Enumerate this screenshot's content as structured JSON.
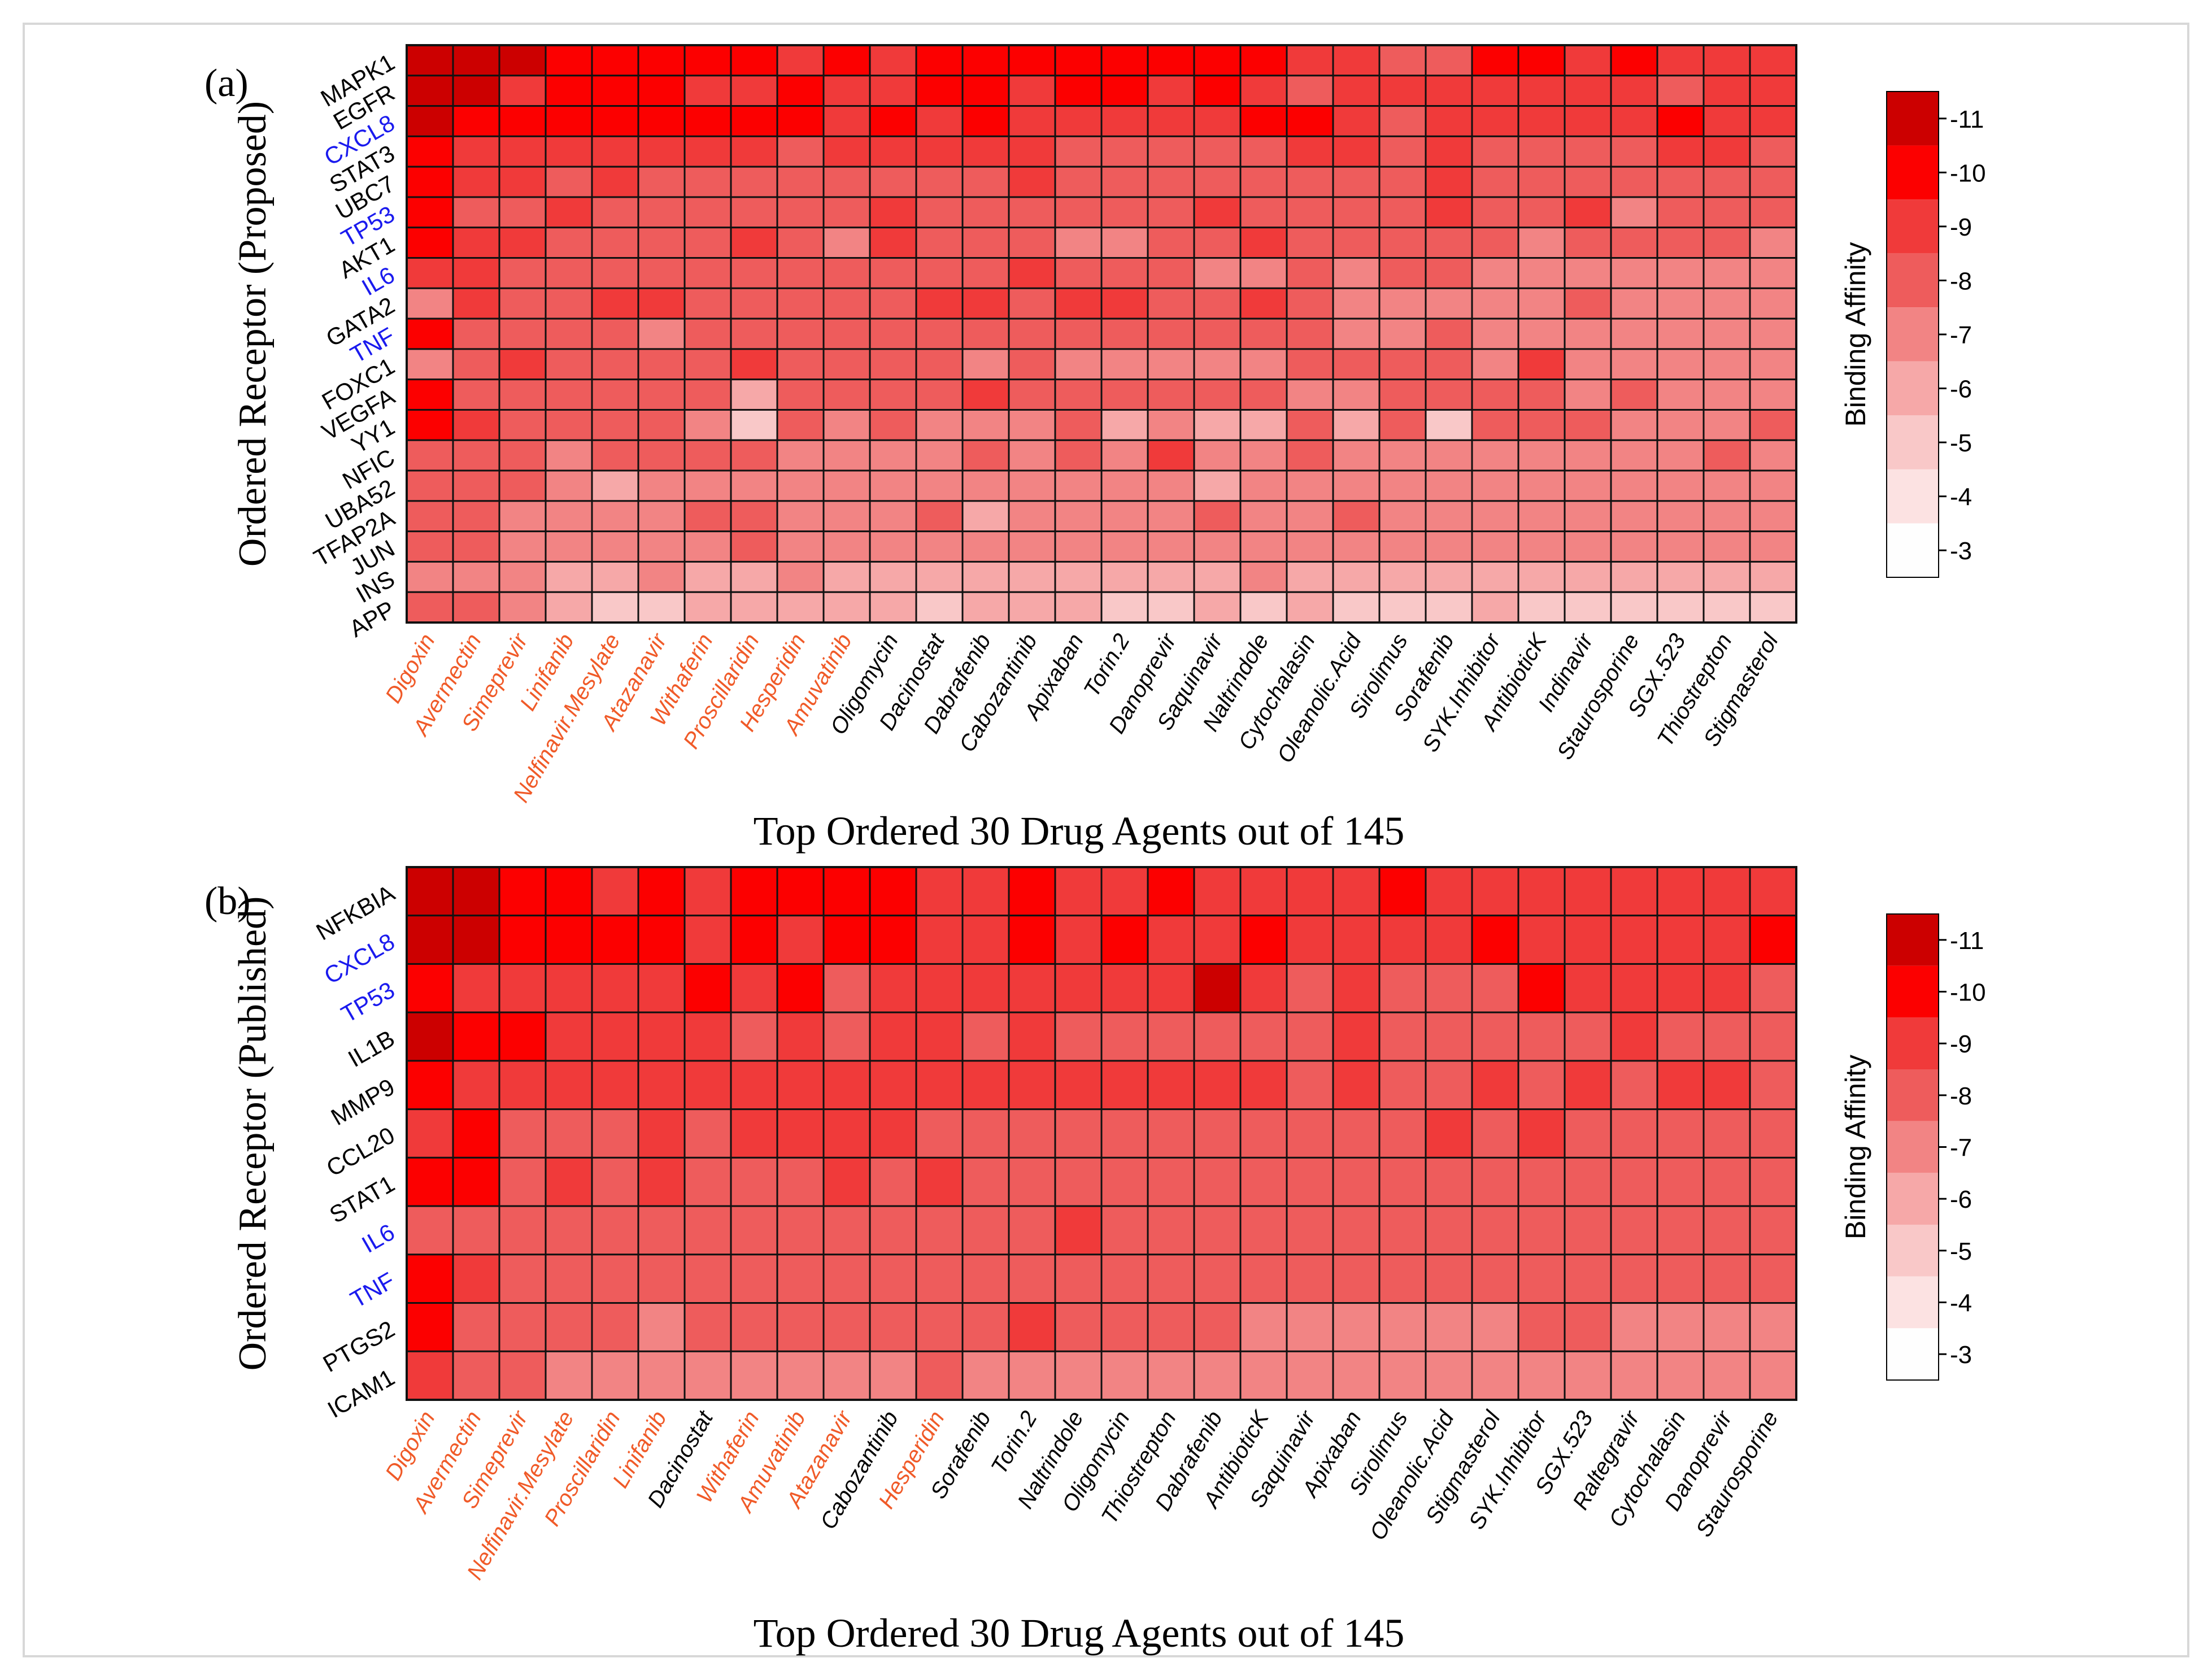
{
  "colors": {
    "text": "#000000",
    "highlight_blue": "#1a1aee",
    "highlight_orange": "#f05a28",
    "grid": "#111111",
    "scale_low": "#fefefe",
    "scale_high": "#cc0000"
  },
  "chart_data": [
    {
      "type": "heatmap",
      "panel_label": "(a)",
      "ylabel": "Ordered Receptor (Proposed)",
      "xlabel": "Top Ordered 30 Drug Agents out of 145",
      "rows": [
        "MAPK1",
        "EGFR",
        "CXCL8",
        "STAT3",
        "UBC7",
        "TP53",
        "AKT1",
        "IL6",
        "GATA2",
        "TNF",
        "FOXC1",
        "VEGFA",
        "YY1",
        "NFIC",
        "UBA52",
        "TFAP2A",
        "JUN",
        "INS",
        "APP"
      ],
      "blue_rows": [
        "CXCL8",
        "TP53",
        "IL6",
        "TNF"
      ],
      "columns": [
        "Digoxin",
        "Avermectin",
        "Simeprevir",
        "Linifanib",
        "Nelfinavir.Mesylate",
        "Atazanavir",
        "Withaferin",
        "Proscillaridin",
        "Hesperidin",
        "Amuvatinib",
        "Oligomycin",
        "Dacinostat",
        "Dabrafenib",
        "Cabozantinib",
        "Apixaban",
        "Torin.2",
        "Danoprevir",
        "Saquinavir",
        "Naltrindole",
        "Cytochalasin",
        "Oleanolic.Acid",
        "Sirolimus",
        "Sorafenib",
        "SYK.Inhibitor",
        "AntibioticK",
        "Indinavir",
        "Staurosporine",
        "SGX.523",
        "Thiostrepton",
        "Stigmasterol"
      ],
      "orange_columns": [
        "Digoxin",
        "Avermectin",
        "Simeprevir",
        "Linifanib",
        "Nelfinavir.Mesylate",
        "Atazanavir",
        "Withaferin",
        "Proscillaridin",
        "Hesperidin",
        "Amuvatinib"
      ],
      "values": [
        [
          -11.2,
          -11.3,
          -10.8,
          -10.2,
          -10.1,
          -10.1,
          -10.0,
          -10.2,
          -9.3,
          -10.0,
          -9.5,
          -10.0,
          -10.0,
          -9.8,
          -10.2,
          -10.2,
          -9.6,
          -10.2,
          -10.2,
          -9.5,
          -9.5,
          -8.4,
          -8.4,
          -10.4,
          -9.6,
          -9.3,
          -10.4,
          -9.2,
          -9.5,
          -9.2
        ],
        [
          -11.0,
          -11.2,
          -9.2,
          -9.6,
          -9.8,
          -9.7,
          -9.3,
          -9.4,
          -9.8,
          -9.3,
          -9.2,
          -9.6,
          -9.8,
          -9.2,
          -10.2,
          -10.2,
          -9.2,
          -10.4,
          -9.4,
          -7.6,
          -9.0,
          -8.6,
          -9.0,
          -9.3,
          -9.2,
          -9.0,
          -9.4,
          -7.6,
          -9.0,
          -9.1
        ],
        [
          -10.6,
          -10.0,
          -9.9,
          -9.9,
          -9.9,
          -9.8,
          -9.6,
          -9.8,
          -9.9,
          -9.5,
          -9.8,
          -9.4,
          -9.8,
          -9.3,
          -9.5,
          -9.4,
          -9.3,
          -9.3,
          -9.9,
          -10.0,
          -9.2,
          -8.5,
          -9.0,
          -9.0,
          -9.0,
          -8.8,
          -9.2,
          -10.2,
          -9.2,
          -9.3
        ],
        [
          -10.1,
          -8.8,
          -8.8,
          -9.0,
          -8.8,
          -8.9,
          -8.6,
          -8.6,
          -8.5,
          -8.6,
          -8.7,
          -8.6,
          -8.7,
          -8.8,
          -8.0,
          -8.2,
          -8.3,
          -8.4,
          -8.5,
          -8.6,
          -8.9,
          -8.3,
          -8.8,
          -8.4,
          -8.5,
          -8.4,
          -8.5,
          -8.6,
          -8.8,
          -8.5
        ],
        [
          -10.2,
          -8.8,
          -8.9,
          -8.3,
          -8.6,
          -8.4,
          -8.4,
          -8.5,
          -8.0,
          -8.1,
          -8.3,
          -8.3,
          -8.5,
          -8.8,
          -8.4,
          -8.1,
          -8.1,
          -8.4,
          -8.3,
          -8.2,
          -8.1,
          -8.2,
          -8.6,
          -8.2,
          -8.1,
          -8.0,
          -8.4,
          -8.4,
          -8.1,
          -8.2
        ],
        [
          -10.1,
          -7.8,
          -8.0,
          -8.8,
          -8.0,
          -8.2,
          -8.5,
          -8.4,
          -8.2,
          -8.3,
          -8.6,
          -8.2,
          -8.3,
          -8.1,
          -8.3,
          -8.1,
          -8.2,
          -8.8,
          -8.3,
          -8.1,
          -7.8,
          -7.9,
          -9.2,
          -8.0,
          -8.0,
          -9.5,
          -7.4,
          -7.9,
          -8.0,
          -8.0
        ],
        [
          -10.0,
          -8.9,
          -8.8,
          -8.2,
          -8.3,
          -8.2,
          -8.2,
          -8.9,
          -8.0,
          -6.8,
          -8.9,
          -8.0,
          -8.3,
          -8.1,
          -7.3,
          -7.4,
          -7.9,
          -8.2,
          -8.7,
          -8.0,
          -7.8,
          -8.2,
          -7.9,
          -7.6,
          -7.4,
          -7.6,
          -7.6,
          -7.6,
          -7.6,
          -7.3
        ],
        [
          -9.4,
          -8.7,
          -8.5,
          -8.1,
          -8.0,
          -8.2,
          -8.3,
          -8.3,
          -8.2,
          -8.1,
          -8.0,
          -8.2,
          -8.5,
          -9.1,
          -7.6,
          -7.7,
          -7.8,
          -7.5,
          -7.3,
          -7.8,
          -6.8,
          -7.8,
          -7.8,
          -7.3,
          -7.4,
          -7.2,
          -7.3,
          -7.3,
          -7.3,
          -7.5
        ],
        [
          -7.2,
          -8.9,
          -8.0,
          -7.9,
          -8.8,
          -8.8,
          -8.0,
          -8.1,
          -8.0,
          -8.0,
          -8.0,
          -8.8,
          -9.0,
          -8.0,
          -9.0,
          -8.8,
          -7.9,
          -8.2,
          -8.8,
          -8.0,
          -7.5,
          -7.5,
          -7.3,
          -7.4,
          -7.4,
          -7.6,
          -7.5,
          -7.4,
          -7.5,
          -7.4
        ],
        [
          -10.3,
          -8.3,
          -7.8,
          -7.8,
          -7.8,
          -6.9,
          -7.8,
          -7.8,
          -7.7,
          -7.8,
          -7.8,
          -7.8,
          -7.8,
          -7.9,
          -7.8,
          -7.7,
          -7.7,
          -7.6,
          -7.7,
          -7.7,
          -7.0,
          -7.4,
          -7.8,
          -7.3,
          -7.3,
          -7.0,
          -7.2,
          -7.2,
          -7.1,
          -7.2
        ],
        [
          -7.5,
          -8.1,
          -8.8,
          -8.0,
          -8.0,
          -8.0,
          -8.0,
          -8.9,
          -7.8,
          -7.9,
          -7.8,
          -8.0,
          -7.0,
          -8.0,
          -7.2,
          -7.4,
          -7.4,
          -7.3,
          -7.5,
          -7.7,
          -7.8,
          -7.6,
          -7.8,
          -7.5,
          -9.2,
          -7.4,
          -7.3,
          -7.5,
          -7.4,
          -7.2
        ],
        [
          -10.4,
          -7.8,
          -7.8,
          -7.8,
          -7.9,
          -7.8,
          -7.9,
          -6.2,
          -7.8,
          -7.8,
          -7.8,
          -7.6,
          -9.2,
          -7.9,
          -7.7,
          -7.6,
          -7.6,
          -7.6,
          -7.7,
          -7.5,
          -7.5,
          -7.6,
          -7.6,
          -7.8,
          -7.7,
          -7.5,
          -7.6,
          -7.5,
          -7.5,
          -7.5
        ],
        [
          -10.4,
          -8.6,
          -7.9,
          -8.0,
          -7.6,
          -7.7,
          -7.5,
          -5.2,
          -7.6,
          -7.5,
          -7.6,
          -7.3,
          -7.4,
          -7.4,
          -7.6,
          -6.4,
          -7.0,
          -6.4,
          -6.5,
          -7.6,
          -6.0,
          -7.7,
          -5.2,
          -7.6,
          -7.6,
          -7.8,
          -7.3,
          -6.8,
          -6.9,
          -7.6
        ],
        [
          -7.6,
          -8.5,
          -7.9,
          -7.5,
          -7.6,
          -7.6,
          -7.6,
          -7.6,
          -7.5,
          -7.5,
          -7.4,
          -7.4,
          -7.6,
          -7.5,
          -7.6,
          -7.2,
          -9.3,
          -7.3,
          -7.4,
          -7.6,
          -7.3,
          -7.4,
          -7.5,
          -7.3,
          -7.4,
          -7.2,
          -7.3,
          -7.4,
          -7.6,
          -7.4
        ],
        [
          -7.6,
          -7.9,
          -7.8,
          -7.5,
          -6.4,
          -7.2,
          -7.2,
          -7.3,
          -7.2,
          -7.2,
          -7.2,
          -7.0,
          -7.0,
          -6.8,
          -7.2,
          -7.4,
          -7.4,
          -6.4,
          -7.2,
          -7.2,
          -7.0,
          -6.8,
          -7.1,
          -7.2,
          -7.2,
          -7.2,
          -7.2,
          -6.8,
          -6.8,
          -7.0
        ],
        [
          -7.6,
          -8.3,
          -7.4,
          -7.4,
          -7.3,
          -7.4,
          -7.8,
          -7.8,
          -7.2,
          -7.3,
          -7.3,
          -7.6,
          -6.5,
          -7.4,
          -7.4,
          -7.3,
          -6.6,
          -7.7,
          -7.2,
          -7.2,
          -7.7,
          -7.2,
          -7.3,
          -7.3,
          -7.3,
          -7.2,
          -7.2,
          -7.2,
          -7.0,
          -7.2
        ],
        [
          -7.6,
          -7.6,
          -7.4,
          -7.2,
          -7.0,
          -7.2,
          -7.3,
          -7.6,
          -7.0,
          -7.2,
          -7.2,
          -7.1,
          -7.2,
          -6.6,
          -7.0,
          -7.0,
          -6.8,
          -7.2,
          -7.2,
          -7.0,
          -6.8,
          -6.8,
          -7.1,
          -7.0,
          -6.6,
          -6.6,
          -6.6,
          -6.7,
          -6.6,
          -6.6
        ],
        [
          -7.2,
          -7.2,
          -7.2,
          -6.4,
          -6.3,
          -6.8,
          -6.5,
          -6.5,
          -6.6,
          -6.4,
          -6.4,
          -6.4,
          -6.5,
          -6.4,
          -6.4,
          -6.5,
          -6.3,
          -6.4,
          -6.6,
          -6.4,
          -6.4,
          -6.2,
          -6.4,
          -6.4,
          -6.2,
          -6.0,
          -6.3,
          -6.2,
          -6.4,
          -6.2
        ],
        [
          -7.8,
          -7.6,
          -7.2,
          -5.8,
          -5.4,
          -5.0,
          -6.0,
          -5.8,
          -5.6,
          -5.8,
          -5.6,
          -5.4,
          -5.6,
          -5.8,
          -5.6,
          -5.4,
          -5.2,
          -5.6,
          -5.4,
          -5.6,
          -5.2,
          -5.4,
          -5.2,
          -5.6,
          -5.4,
          -5.5,
          -5.4,
          -5.5,
          -5.2,
          -5.0
        ]
      ],
      "colorbar": {
        "label": "Binding Affinity",
        "ticks": [
          "-11",
          "-10",
          "-9",
          "-8",
          "-7",
          "-6",
          "-5",
          "-4",
          "-3"
        ],
        "range": [
          -11.5,
          -2.5
        ]
      }
    },
    {
      "type": "heatmap",
      "panel_label": "(b)",
      "ylabel": "Ordered Receptor (Published)",
      "xlabel": "Top Ordered 30 Drug Agents out of 145",
      "rows": [
        "NFKBIA",
        "CXCL8",
        "TP53",
        "IL1B",
        "MMP9",
        "CCL20",
        "STAT1",
        "IL6",
        "TNF",
        "PTGS2",
        "ICAM1"
      ],
      "blue_rows": [
        "CXCL8",
        "TP53",
        "IL6",
        "TNF"
      ],
      "columns": [
        "Digoxin",
        "Avermectin",
        "Simeprevir",
        "Nelfinavir.Mesylate",
        "Proscillaridin",
        "Linifanib",
        "Dacinostat",
        "Withaferin",
        "Amuvatinib",
        "Atazanavir",
        "Cabozantinib",
        "Hesperidin",
        "Sorafenib",
        "Torin.2",
        "Naltrindole",
        "Oligomycin",
        "Thiostrepton",
        "Dabrafenib",
        "AntibioticK",
        "Saquinavir",
        "Apixaban",
        "Sirolimus",
        "Oleanolic.Acid",
        "Stigmasterol",
        "SYK.Inhibitor",
        "SGX.523",
        "Raltegravir",
        "Cytochalasin",
        "Danoprevir",
        "Staurosporine"
      ],
      "orange_columns": [
        "Digoxin",
        "Avermectin",
        "Simeprevir",
        "Nelfinavir.Mesylate",
        "Proscillaridin",
        "Linifanib",
        "Withaferin",
        "Amuvatinib",
        "Atazanavir",
        "Hesperidin"
      ],
      "values": [
        [
          -11.2,
          -11.3,
          -10.2,
          -10.4,
          -9.3,
          -10.2,
          -9.4,
          -9.6,
          -9.6,
          -10.3,
          -9.6,
          -9.4,
          -9.4,
          -10.2,
          -9.4,
          -9.5,
          -10.1,
          -9.3,
          -9.3,
          -9.4,
          -9.3,
          -10.5,
          -9.2,
          -9.3,
          -9.4,
          -9.3,
          -9.3,
          -9.4,
          -9.2,
          -9.4
        ],
        [
          -10.6,
          -11.2,
          -10.2,
          -10.0,
          -10.0,
          -10.2,
          -9.4,
          -10.2,
          -9.5,
          -10.2,
          -10.1,
          -9.5,
          -9.4,
          -10.2,
          -9.4,
          -10.2,
          -9.4,
          -9.4,
          -10.1,
          -9.3,
          -9.4,
          -9.4,
          -9.3,
          -10.3,
          -9.4,
          -9.3,
          -9.3,
          -9.4,
          -9.3,
          -10.4
        ],
        [
          -10.2,
          -9.4,
          -9.3,
          -9.2,
          -9.2,
          -9.2,
          -10.4,
          -9.2,
          -10.4,
          -8.4,
          -9.0,
          -9.0,
          -8.6,
          -8.8,
          -8.6,
          -8.6,
          -9.0,
          -10.6,
          -9.0,
          -8.4,
          -8.8,
          -8.5,
          -8.3,
          -8.4,
          -10.4,
          -8.6,
          -9.0,
          -8.6,
          -8.8,
          -8.4
        ],
        [
          -11.0,
          -10.3,
          -10.2,
          -9.1,
          -9.0,
          -8.6,
          -8.6,
          -8.4,
          -8.8,
          -8.4,
          -8.9,
          -9.0,
          -8.4,
          -9.0,
          -8.4,
          -8.4,
          -8.4,
          -8.4,
          -8.4,
          -8.4,
          -9.0,
          -8.4,
          -8.4,
          -8.3,
          -8.5,
          -8.4,
          -8.9,
          -8.4,
          -8.4,
          -8.4
        ],
        [
          -10.2,
          -9.2,
          -9.0,
          -9.1,
          -9.0,
          -9.0,
          -9.0,
          -9.0,
          -9.0,
          -9.0,
          -9.0,
          -8.8,
          -8.8,
          -8.6,
          -8.6,
          -8.6,
          -8.6,
          -8.7,
          -9.0,
          -8.4,
          -9.2,
          -8.4,
          -8.4,
          -8.6,
          -8.4,
          -8.6,
          -8.4,
          -8.6,
          -9.2,
          -8.4
        ],
        [
          -9.3,
          -10.2,
          -8.2,
          -8.2,
          -8.4,
          -8.6,
          -8.4,
          -8.8,
          -8.8,
          -8.7,
          -9.0,
          -8.3,
          -8.3,
          -8.5,
          -8.3,
          -8.3,
          -7.6,
          -8.2,
          -8.4,
          -8.3,
          -8.4,
          -8.2,
          -9.2,
          -8.3,
          -9.2,
          -8.2,
          -8.4,
          -8.2,
          -7.6,
          -8.2
        ],
        [
          -10.2,
          -10.2,
          -8.2,
          -9.0,
          -8.4,
          -9.0,
          -8.4,
          -8.4,
          -8.5,
          -8.9,
          -8.4,
          -9.2,
          -8.4,
          -8.4,
          -8.3,
          -8.4,
          -8.3,
          -8.2,
          -8.2,
          -8.2,
          -8.0,
          -8.2,
          -7.6,
          -8.0,
          -8.2,
          -8.2,
          -8.2,
          -7.8,
          -8.0,
          -8.1
        ],
        [
          -8.4,
          -8.4,
          -8.4,
          -8.4,
          -8.3,
          -8.3,
          -8.3,
          -8.3,
          -8.3,
          -8.4,
          -8.2,
          -8.3,
          -8.3,
          -8.3,
          -9.3,
          -8.2,
          -7.6,
          -8.2,
          -7.6,
          -8.2,
          -8.2,
          -8.2,
          -8.2,
          -8.1,
          -8.0,
          -7.7,
          -7.8,
          -7.8,
          -7.8,
          -7.8
        ],
        [
          -10.4,
          -8.7,
          -8.2,
          -7.7,
          -8.0,
          -8.1,
          -8.0,
          -8.2,
          -8.1,
          -8.3,
          -8.2,
          -8.2,
          -7.8,
          -8.0,
          -8.0,
          -7.8,
          -7.8,
          -7.8,
          -8.0,
          -7.8,
          -7.8,
          -7.6,
          -7.7,
          -7.6,
          -7.6,
          -7.6,
          -7.7,
          -7.6,
          -7.7,
          -7.6
        ],
        [
          -10.1,
          -8.0,
          -8.0,
          -8.0,
          -7.8,
          -7.5,
          -8.0,
          -8.0,
          -7.9,
          -7.9,
          -7.8,
          -7.8,
          -7.8,
          -9.2,
          -7.6,
          -7.6,
          -7.6,
          -7.6,
          -7.5,
          -7.5,
          -7.4,
          -7.4,
          -7.4,
          -7.4,
          -7.6,
          -7.6,
          -7.4,
          -7.4,
          -7.4,
          -7.4
        ],
        [
          -8.7,
          -7.8,
          -7.8,
          -7.4,
          -7.5,
          -7.4,
          -7.4,
          -7.4,
          -7.3,
          -7.3,
          -7.3,
          -7.8,
          -7.4,
          -7.4,
          -7.4,
          -7.4,
          -7.4,
          -6.6,
          -7.3,
          -7.3,
          -7.3,
          -7.2,
          -7.3,
          -7.3,
          -7.3,
          -7.3,
          -7.3,
          -7.3,
          -7.2,
          -7.2
        ]
      ],
      "colorbar": {
        "label": "Binding Affinity",
        "ticks": [
          "-11",
          "-10",
          "-9",
          "-8",
          "-7",
          "-6",
          "-5",
          "-4",
          "-3"
        ],
        "range": [
          -11.5,
          -2.5
        ]
      }
    }
  ]
}
